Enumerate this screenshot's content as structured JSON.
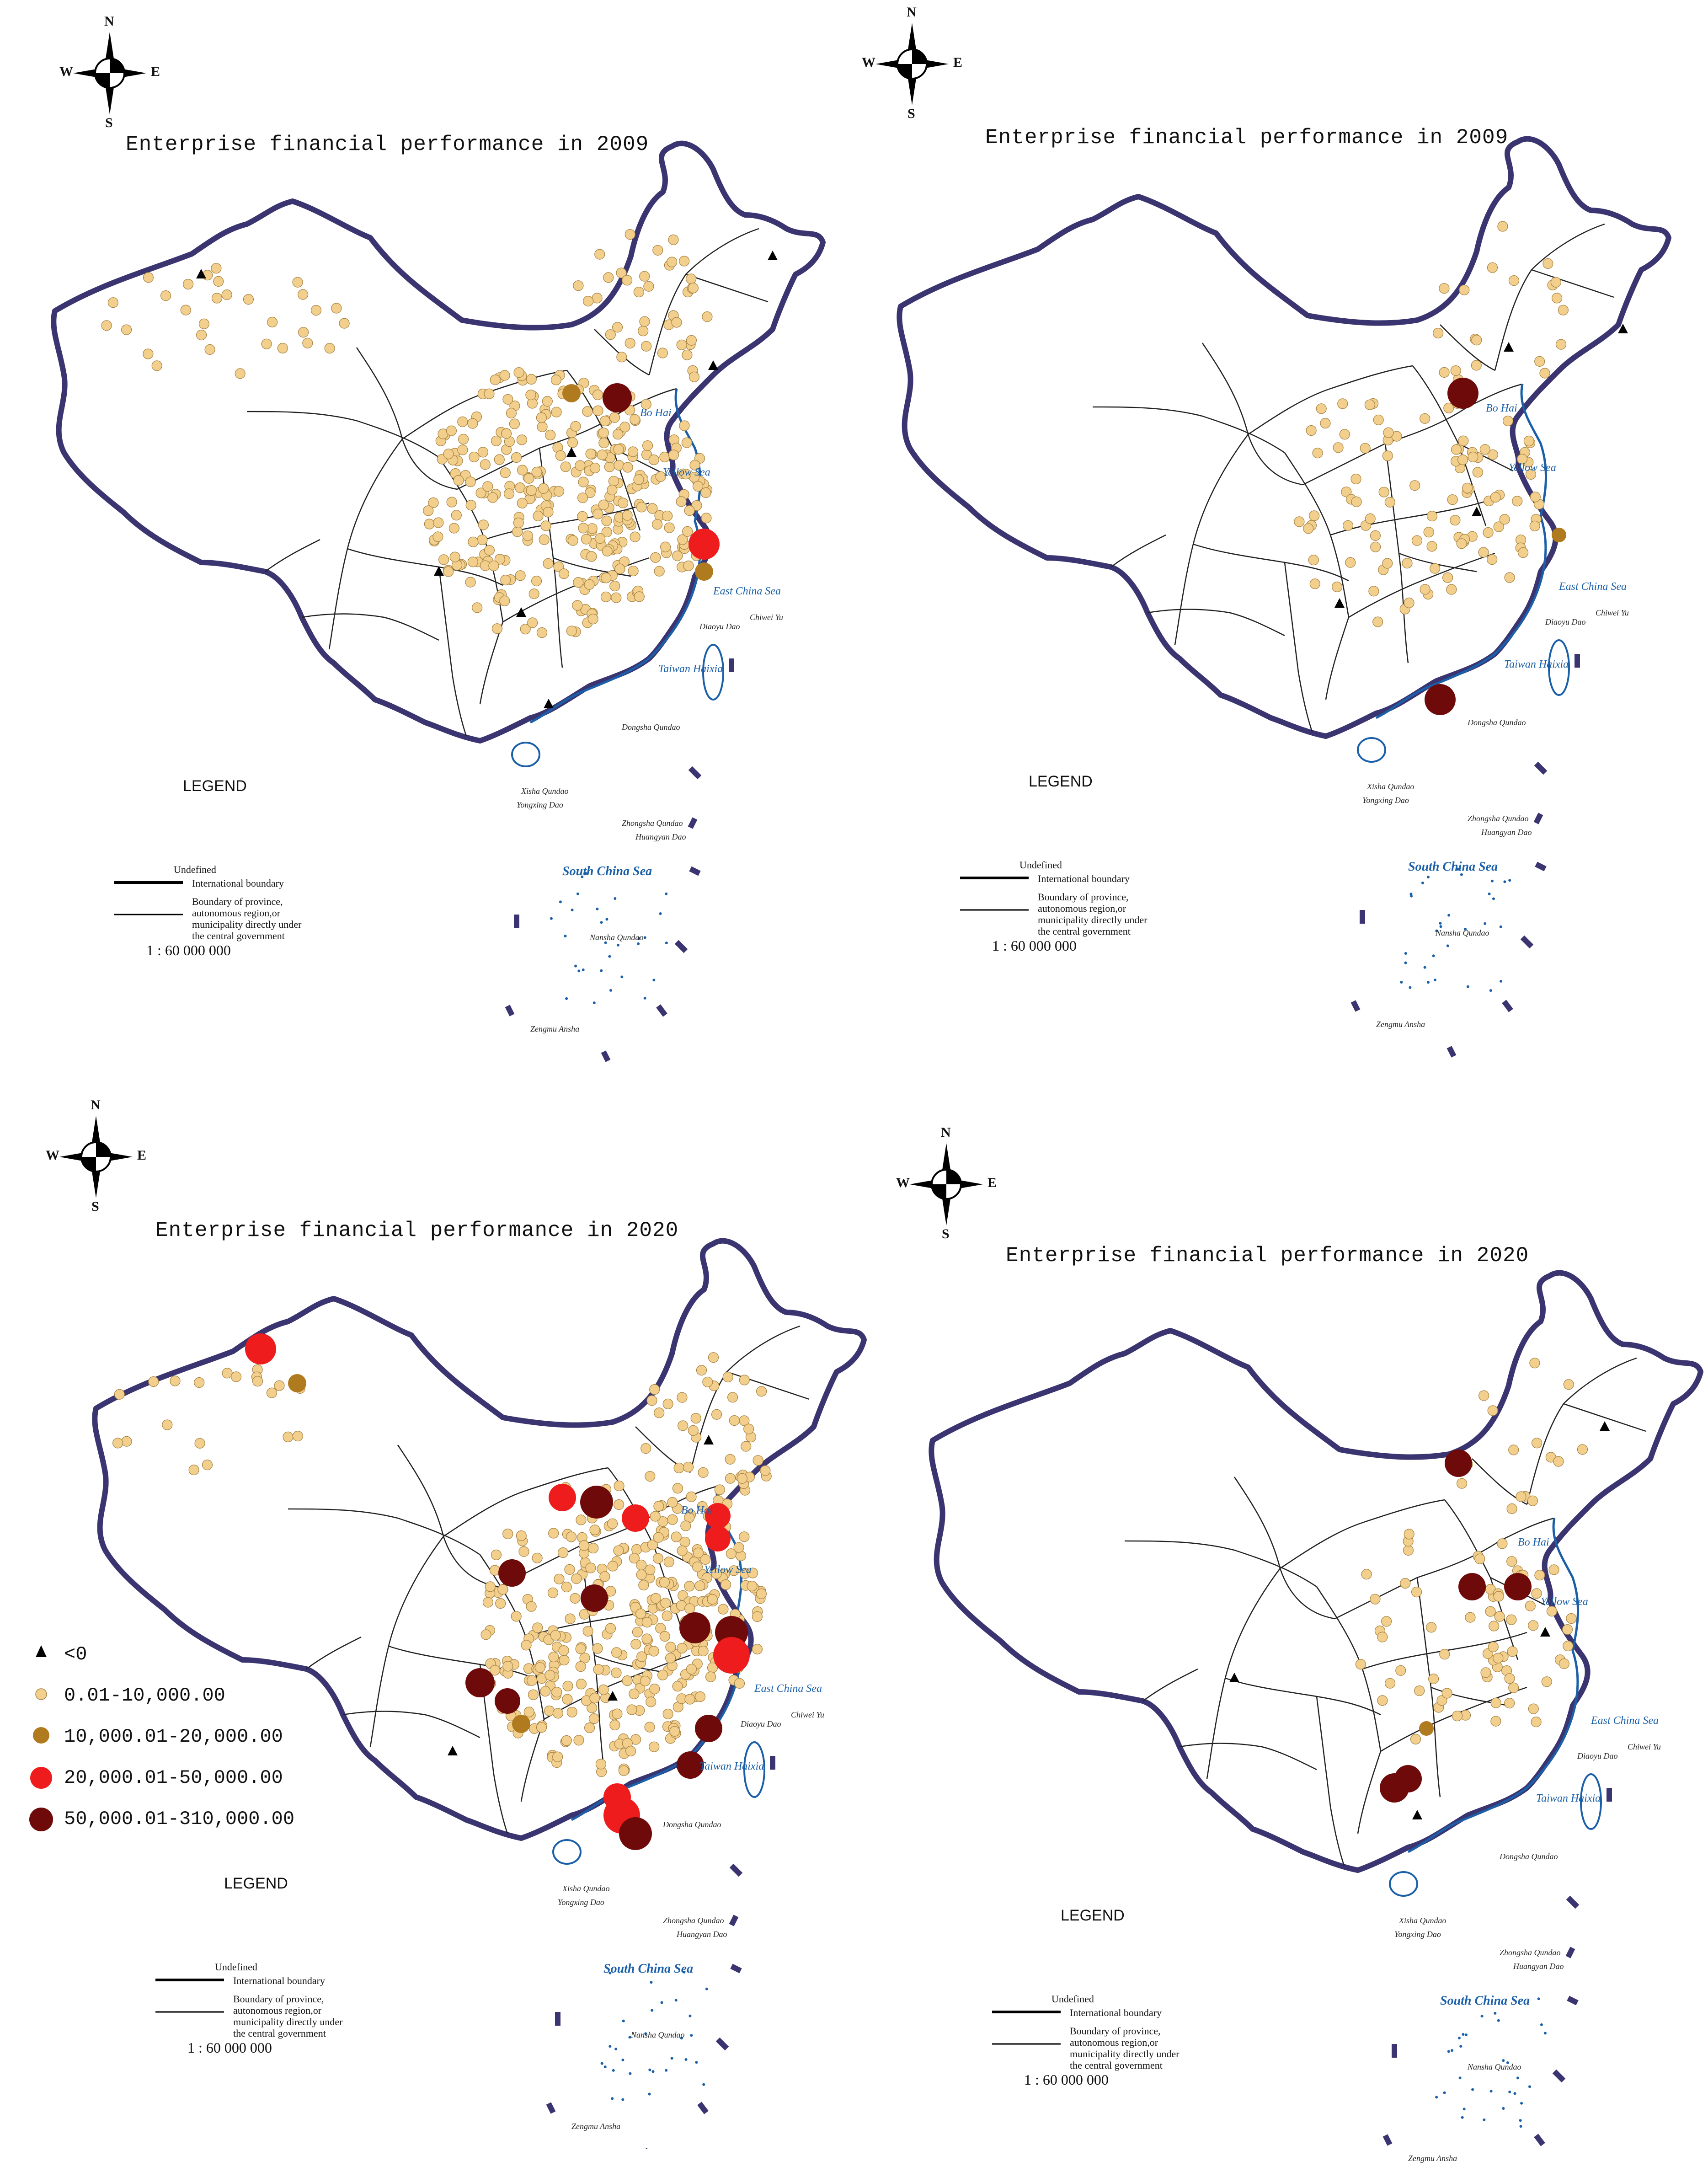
{
  "maps": [
    {
      "id": "top-left",
      "title": "Enterprise financial performance in 2009"
    },
    {
      "id": "top-right",
      "title": "Enterprise financial performance in 2009"
    },
    {
      "id": "bottom-left",
      "title": "Enterprise financial performance in 2020"
    },
    {
      "id": "bottom-right",
      "title": "Enterprise financial performance in 2020"
    }
  ],
  "compass": {
    "n": "N",
    "s": "S",
    "e": "E",
    "w": "W"
  },
  "legend": {
    "heading": "LEGEND",
    "undefined": "Undefined",
    "intl": "International boundary",
    "prov1": "Boundary of province,",
    "prov2": "autonomous region,or",
    "prov3": "municipality directly under",
    "prov4": "the central government",
    "scale": "1 : 60 000 000"
  },
  "seas": {
    "bohai": "Bo Hai",
    "yellow": "Yellow Sea",
    "eastchina": "East China Sea",
    "southchina": "South China Sea",
    "taiwan": "Taiwan Haixia",
    "diaoyu": "Diaoyu Dao",
    "chiwei": "Chiwei Yu",
    "dongsha": "Dongsha Qundao",
    "xisha": "Xisha Qundao",
    "yongxing": "Yongxing Dao",
    "zhongsha": "Zhongsha Qundao",
    "huangyan": "Huangyan Dao",
    "nansha": "Nansha Qundao",
    "zengmu": "Zengmu Ansha"
  },
  "classes": [
    {
      "label": "<0",
      "shape": "triangle",
      "color": "#000000"
    },
    {
      "label": "0.01-10,000.00",
      "shape": "circle",
      "color": "#f2cf8c"
    },
    {
      "label": "10,000.01-20,000.00",
      "shape": "circle",
      "color": "#b07a1e"
    },
    {
      "label": "20,000.01-50,000.00",
      "shape": "circle",
      "color": "#ee1c1c"
    },
    {
      "label": "50,000.01-310,000.00",
      "shape": "circle",
      "color": "#6e0a0a"
    }
  ],
  "colors": {
    "border": "#3a3470",
    "sea": "#1a5fa8"
  }
}
